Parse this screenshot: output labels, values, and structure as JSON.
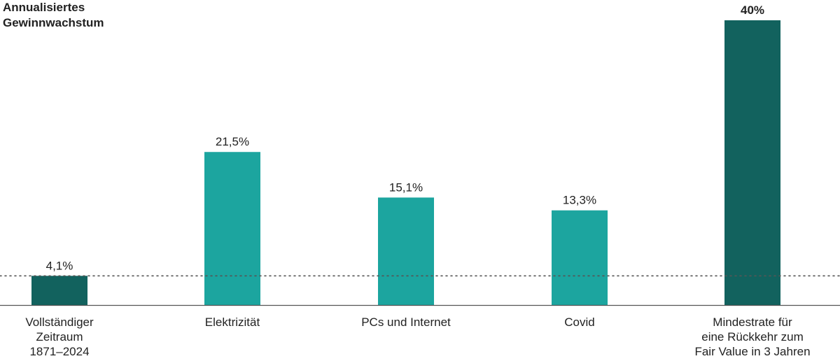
{
  "chart_data": {
    "type": "bar",
    "ylabel_line1": "Annualisiertes",
    "ylabel_line2": "Gewinnwachstum",
    "ylim": [
      0,
      40
    ],
    "reference_line_value": 4.1,
    "bars": [
      {
        "category_lines": [
          "Vollständiger",
          "Zeitraum",
          "1871–2024"
        ],
        "value": 4.1,
        "label": "4,1%",
        "color": "#12625e",
        "bold": false
      },
      {
        "category_lines": [
          "Elektrizität"
        ],
        "value": 21.5,
        "label": "21,5%",
        "color": "#1ca59f",
        "bold": false
      },
      {
        "category_lines": [
          "PCs und Internet"
        ],
        "value": 15.1,
        "label": "15,1%",
        "color": "#1ca59f",
        "bold": false
      },
      {
        "category_lines": [
          "Covid"
        ],
        "value": 13.3,
        "label": "13,3%",
        "color": "#1ca59f",
        "bold": false
      },
      {
        "category_lines": [
          "Mindestrate für",
          "eine Rückkehr zum",
          "Fair Value in 3 Jahren"
        ],
        "value": 40,
        "label": "40%",
        "color": "#12625e",
        "bold": true
      }
    ],
    "colors": {
      "dark": "#12625e",
      "light": "#1ca59f",
      "axis": "#555555",
      "text": "#222222"
    }
  }
}
